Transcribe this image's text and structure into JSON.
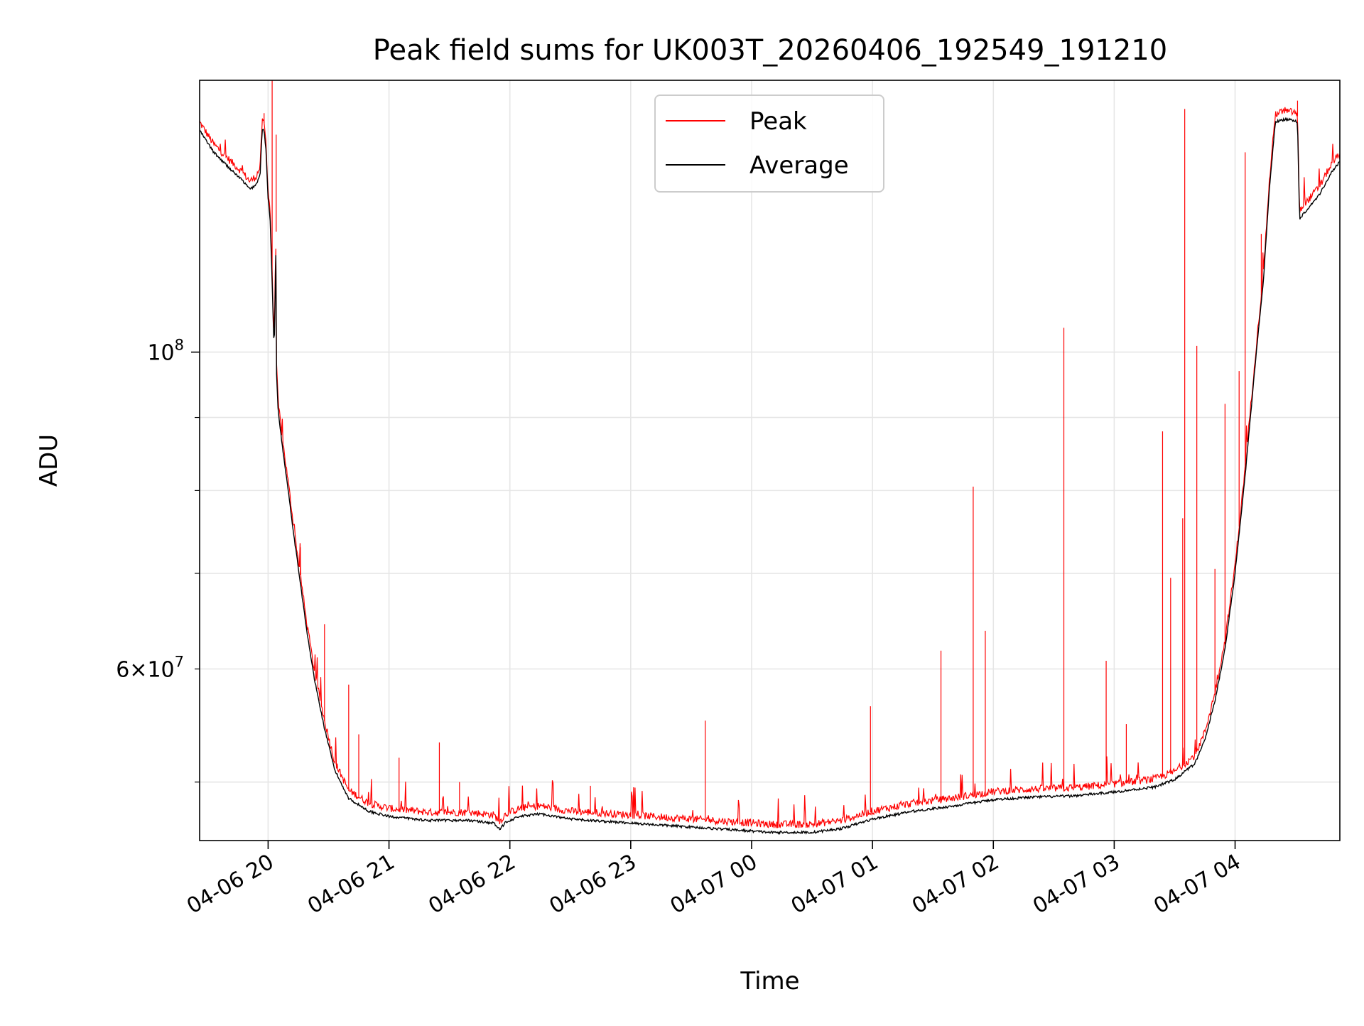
{
  "chart_data": {
    "type": "line",
    "title": "Peak field sums for UK003T_20260406_192549_191210",
    "xlabel": "Time",
    "ylabel": "ADU",
    "y_scale": "log",
    "ylim": [
      45500000,
      155000000
    ],
    "x_range": [
      "2026-04-06T19:26",
      "2026-04-07T04:52"
    ],
    "grid": true,
    "legend_position": "upper center",
    "x_ticks": [
      {
        "t": "2026-04-06T20:00",
        "label": "04-06 20"
      },
      {
        "t": "2026-04-06T21:00",
        "label": "04-06 21"
      },
      {
        "t": "2026-04-06T22:00",
        "label": "04-06 22"
      },
      {
        "t": "2026-04-06T23:00",
        "label": "04-06 23"
      },
      {
        "t": "2026-04-07T00:00",
        "label": "04-07 00"
      },
      {
        "t": "2026-04-07T01:00",
        "label": "04-07 01"
      },
      {
        "t": "2026-04-07T02:00",
        "label": "04-07 02"
      },
      {
        "t": "2026-04-07T03:00",
        "label": "04-07 03"
      },
      {
        "t": "2026-04-07T04:00",
        "label": "04-07 04"
      }
    ],
    "y_major_ticks": [
      {
        "v": 100000000,
        "base": "10",
        "exp": "8"
      }
    ],
    "y_labeled_minor_ticks": [
      {
        "v": 60000000,
        "mant": "6",
        "base": "10",
        "exp": "7"
      }
    ],
    "y_minor_ticks": [
      50000000,
      70000000,
      80000000,
      90000000
    ],
    "series": [
      {
        "name": "Average",
        "color": "#000000",
        "points": [
          [
            "2026-04-06T19:26",
            143000000
          ],
          [
            "2026-04-06T19:33",
            138000000
          ],
          [
            "2026-04-06T19:42",
            134000000
          ],
          [
            "2026-04-06T19:47",
            132000000
          ],
          [
            "2026-04-06T19:51",
            130000000
          ],
          [
            "2026-04-06T19:54",
            131000000
          ],
          [
            "2026-04-06T19:56",
            133000000
          ],
          [
            "2026-04-06T19:57",
            143000000
          ],
          [
            "2026-04-06T19:58",
            143000000
          ],
          [
            "2026-04-06T19:59",
            138000000
          ],
          [
            "2026-04-06T20:00",
            128000000
          ],
          [
            "2026-04-06T20:01",
            124000000
          ],
          [
            "2026-04-06T20:02",
            112000000
          ],
          [
            "2026-04-06T20:03",
            100000000
          ],
          [
            "2026-04-06T20:04",
            120000000
          ],
          [
            "2026-04-06T20:04",
            98000000
          ],
          [
            "2026-04-06T20:05",
            91000000
          ],
          [
            "2026-04-06T20:07",
            86000000
          ],
          [
            "2026-04-06T20:10",
            80000000
          ],
          [
            "2026-04-06T20:13",
            74000000
          ],
          [
            "2026-04-06T20:16",
            69000000
          ],
          [
            "2026-04-06T20:19",
            64000000
          ],
          [
            "2026-04-06T20:23",
            59000000
          ],
          [
            "2026-04-06T20:28",
            54500000
          ],
          [
            "2026-04-06T20:33",
            51000000
          ],
          [
            "2026-04-06T20:40",
            48700000
          ],
          [
            "2026-04-06T20:50",
            47700000
          ],
          [
            "2026-04-06T21:00",
            47300000
          ],
          [
            "2026-04-06T21:20",
            47000000
          ],
          [
            "2026-04-06T21:40",
            47000000
          ],
          [
            "2026-04-06T21:52",
            46800000
          ],
          [
            "2026-04-06T21:55",
            46300000
          ],
          [
            "2026-04-06T21:58",
            46900000
          ],
          [
            "2026-04-06T22:05",
            47300000
          ],
          [
            "2026-04-06T22:15",
            47500000
          ],
          [
            "2026-04-06T22:30",
            47100000
          ],
          [
            "2026-04-06T22:50",
            46900000
          ],
          [
            "2026-04-06T23:10",
            46700000
          ],
          [
            "2026-04-06T23:30",
            46500000
          ],
          [
            "2026-04-06T23:50",
            46300000
          ],
          [
            "2026-04-07T00:10",
            46100000
          ],
          [
            "2026-04-07T00:30",
            46100000
          ],
          [
            "2026-04-07T00:45",
            46400000
          ],
          [
            "2026-04-07T01:00",
            47100000
          ],
          [
            "2026-04-07T01:20",
            47700000
          ],
          [
            "2026-04-07T01:40",
            48100000
          ],
          [
            "2026-04-07T02:00",
            48600000
          ],
          [
            "2026-04-07T02:20",
            48800000
          ],
          [
            "2026-04-07T02:40",
            48900000
          ],
          [
            "2026-04-07T03:00",
            49200000
          ],
          [
            "2026-04-07T03:20",
            49600000
          ],
          [
            "2026-04-07T03:30",
            50200000
          ],
          [
            "2026-04-07T03:40",
            51500000
          ],
          [
            "2026-04-07T03:45",
            53500000
          ],
          [
            "2026-04-07T03:50",
            57000000
          ],
          [
            "2026-04-07T03:55",
            62000000
          ],
          [
            "2026-04-07T04:00",
            70000000
          ],
          [
            "2026-04-07T04:05",
            82000000
          ],
          [
            "2026-04-07T04:10",
            98000000
          ],
          [
            "2026-04-07T04:14",
            112000000
          ],
          [
            "2026-04-07T04:17",
            130000000
          ],
          [
            "2026-04-07T04:20",
            145000000
          ],
          [
            "2026-04-07T04:25",
            145500000
          ],
          [
            "2026-04-07T04:30",
            145300000
          ],
          [
            "2026-04-07T04:31",
            144500000
          ],
          [
            "2026-04-07T04:32",
            124000000
          ],
          [
            "2026-04-07T04:36",
            126000000
          ],
          [
            "2026-04-07T04:42",
            129000000
          ],
          [
            "2026-04-07T04:47",
            133000000
          ],
          [
            "2026-04-07T04:52",
            136000000
          ]
        ]
      },
      {
        "name": "Peak",
        "color": "#ff0000",
        "offset_factor": 1.012,
        "spikes": [
          [
            "2026-04-06T19:58",
            147000000
          ],
          [
            "2026-04-06T20:02",
            155000000
          ],
          [
            "2026-04-06T20:04",
            142000000
          ],
          [
            "2026-04-06T20:16",
            73000000
          ],
          [
            "2026-04-06T20:28",
            64500000
          ],
          [
            "2026-04-06T20:40",
            58500000
          ],
          [
            "2026-04-06T20:45",
            54000000
          ],
          [
            "2026-04-06T21:05",
            52000000
          ],
          [
            "2026-04-06T21:25",
            53300000
          ],
          [
            "2026-04-06T21:35",
            50000000
          ],
          [
            "2026-04-06T22:40",
            49700000
          ],
          [
            "2026-04-06T23:37",
            55200000
          ],
          [
            "2026-04-07T00:59",
            56500000
          ],
          [
            "2026-04-07T01:34",
            61800000
          ],
          [
            "2026-04-07T01:50",
            80500000
          ],
          [
            "2026-04-07T01:56",
            63800000
          ],
          [
            "2026-04-07T02:35",
            104000000
          ],
          [
            "2026-04-07T02:56",
            60800000
          ],
          [
            "2026-04-07T03:06",
            54900000
          ],
          [
            "2026-04-07T03:24",
            88000000
          ],
          [
            "2026-04-07T03:28",
            69500000
          ],
          [
            "2026-04-07T03:34",
            76500000
          ],
          [
            "2026-04-07T03:35",
            148000000
          ],
          [
            "2026-04-07T03:41",
            101000000
          ],
          [
            "2026-04-07T03:50",
            70500000
          ],
          [
            "2026-04-07T03:55",
            92000000
          ],
          [
            "2026-04-07T04:02",
            97000000
          ],
          [
            "2026-04-07T04:05",
            138000000
          ],
          [
            "2026-04-07T04:13",
            121000000
          ],
          [
            "2026-04-07T04:31",
            150000000
          ]
        ]
      }
    ]
  }
}
